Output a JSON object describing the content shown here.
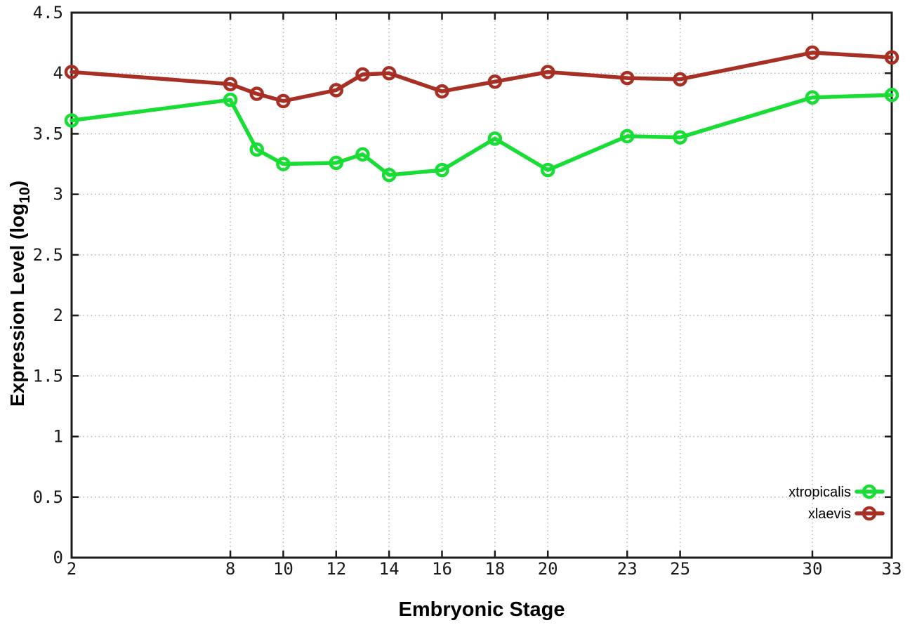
{
  "figure": {
    "background": "#ffffff",
    "xlabel": "Embryonic Stage",
    "ylabel": "Expression Level (log10)",
    "ylabel_prefix": "Expression Level (log",
    "ylabel_sub": "10",
    "ylabel_suffix": ")"
  },
  "chart_data": {
    "type": "line",
    "title": "",
    "xlabel": "Embryonic Stage",
    "ylabel": "Expression Level (log10)",
    "x": [
      2,
      8,
      9,
      10,
      12,
      13,
      14,
      16,
      18,
      20,
      23,
      25,
      30,
      33
    ],
    "series": [
      {
        "name": "xtropicalis",
        "color": "#17dd35",
        "values": [
          3.61,
          3.78,
          3.37,
          3.25,
          3.26,
          3.33,
          3.16,
          3.2,
          3.46,
          3.2,
          3.48,
          3.47,
          3.8,
          3.82
        ]
      },
      {
        "name": "xlaevis",
        "color": "#a72f23",
        "values": [
          4.01,
          3.91,
          3.83,
          3.77,
          3.86,
          3.99,
          4.0,
          3.85,
          3.93,
          4.01,
          3.96,
          3.95,
          4.17,
          4.13
        ]
      }
    ],
    "xticks": [
      2,
      8,
      10,
      12,
      14,
      16,
      18,
      20,
      23,
      25,
      30,
      33
    ],
    "yticks": [
      0,
      0.5,
      1,
      1.5,
      2,
      2.5,
      3,
      3.5,
      4,
      4.5
    ],
    "xlim": [
      2,
      33
    ],
    "ylim": [
      0,
      4.5
    ],
    "grid": true,
    "grid_style": "dotted",
    "legend_position": "inside-bottom-right",
    "marker": "open-circle",
    "axis_color": "#1c1c1c",
    "grid_color": "#b4b4b4",
    "tick_label_color": "#1a1a1a"
  }
}
